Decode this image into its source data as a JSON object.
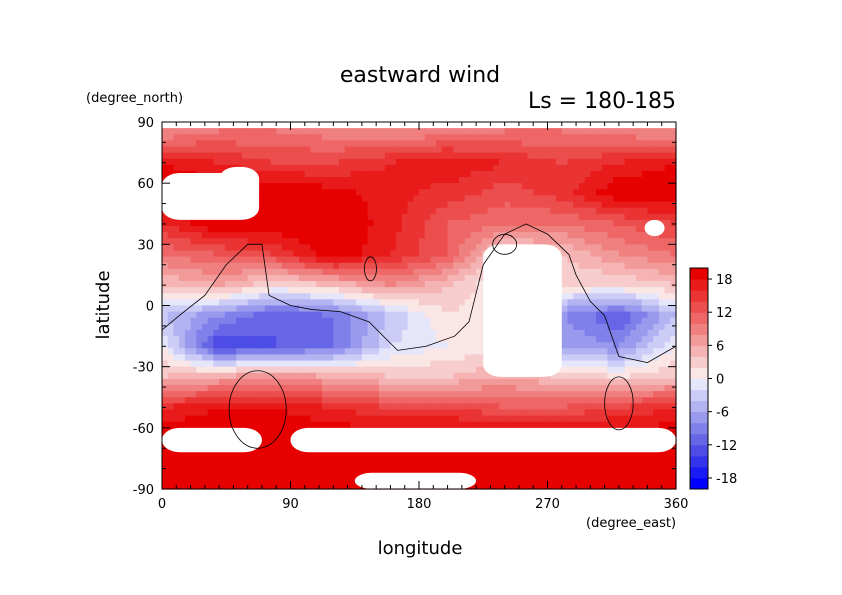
{
  "chart_data": {
    "type": "heatmap",
    "title": "eastward wind",
    "subtitle": "Ls = 180-185",
    "xlabel": "longitude",
    "ylabel": "latitude",
    "xunit": "(degree_east)",
    "yunit": "(degree_north)",
    "xlim": [
      0,
      360
    ],
    "ylim": [
      -90,
      90
    ],
    "x_ticks": [
      0,
      90,
      180,
      270,
      360
    ],
    "y_ticks": [
      90,
      60,
      30,
      0,
      -30,
      -60,
      -90
    ],
    "colorbar": {
      "levels": [
        -20,
        -18,
        -16,
        -14,
        -12,
        -10,
        -8,
        -6,
        -4,
        -2,
        0,
        2,
        4,
        6,
        8,
        10,
        12,
        14,
        16,
        18,
        20
      ],
      "labels": [
        18,
        12,
        6,
        0,
        -6,
        -12,
        -18
      ],
      "colors": [
        "#0000ff",
        "#1a1af5",
        "#3333eb",
        "#4d4de6",
        "#6666e6",
        "#8080ea",
        "#9999ee",
        "#b3b3f2",
        "#ccccf7",
        "#e6e6fb",
        "#fbe6e6",
        "#f7cccc",
        "#f5b3b3",
        "#f29999",
        "#f08080",
        "#ee6666",
        "#ec4d4d",
        "#ea3333",
        "#e81a1a",
        "#e60000"
      ]
    },
    "grid": false,
    "lon": [
      0,
      40,
      80,
      120,
      160,
      200,
      240,
      280,
      320,
      360
    ],
    "lat": [
      85,
      70,
      55,
      40,
      25,
      10,
      -5,
      -20,
      -35,
      -50,
      -65,
      -80
    ],
    "u": [
      [
        8,
        10,
        10,
        9,
        8,
        9,
        10,
        10,
        9,
        8
      ],
      [
        18,
        16,
        14,
        14,
        16,
        18,
        16,
        14,
        16,
        18
      ],
      [
        20,
        20,
        20,
        19,
        17,
        15,
        13,
        15,
        20,
        20
      ],
      [
        16,
        20,
        20,
        20,
        17,
        12,
        10,
        10,
        12,
        14
      ],
      [
        10,
        12,
        14,
        20,
        16,
        12,
        2,
        4,
        8,
        10
      ],
      [
        4,
        6,
        2,
        4,
        8,
        4,
        0,
        2,
        2,
        4
      ],
      [
        -4,
        -8,
        -12,
        -10,
        -4,
        2,
        0,
        -8,
        -12,
        -4
      ],
      [
        0,
        -14,
        -12,
        -10,
        -2,
        0,
        2,
        -6,
        -8,
        0
      ],
      [
        4,
        6,
        8,
        6,
        4,
        4,
        6,
        4,
        2,
        4
      ],
      [
        16,
        18,
        18,
        16,
        14,
        14,
        12,
        12,
        14,
        16
      ],
      [
        20,
        20,
        20,
        20,
        20,
        20,
        20,
        20,
        20,
        20
      ],
      [
        20,
        20,
        20,
        20,
        20,
        20,
        20,
        20,
        20,
        20
      ]
    ],
    "missing_regions": [
      {
        "name": "north-west",
        "lon": [
          0,
          68
        ],
        "lat": [
          42,
          65
        ]
      },
      {
        "name": "north-center",
        "lon": [
          40,
          68
        ],
        "lat": [
          52,
          68
        ]
      },
      {
        "name": "north-east",
        "lon": [
          338,
          352
        ],
        "lat": [
          34,
          42
        ]
      },
      {
        "name": "tharsis",
        "lon": [
          225,
          280
        ],
        "lat": [
          -35,
          30
        ]
      },
      {
        "name": "south-west",
        "lon": [
          0,
          70
        ],
        "lat": [
          -72,
          -60
        ]
      },
      {
        "name": "south-east",
        "lon": [
          90,
          360
        ],
        "lat": [
          -72,
          -60
        ]
      },
      {
        "name": "south-pole",
        "lon": [
          135,
          220
        ],
        "lat": [
          -90,
          -82
        ]
      }
    ],
    "topography_contours": 7
  }
}
